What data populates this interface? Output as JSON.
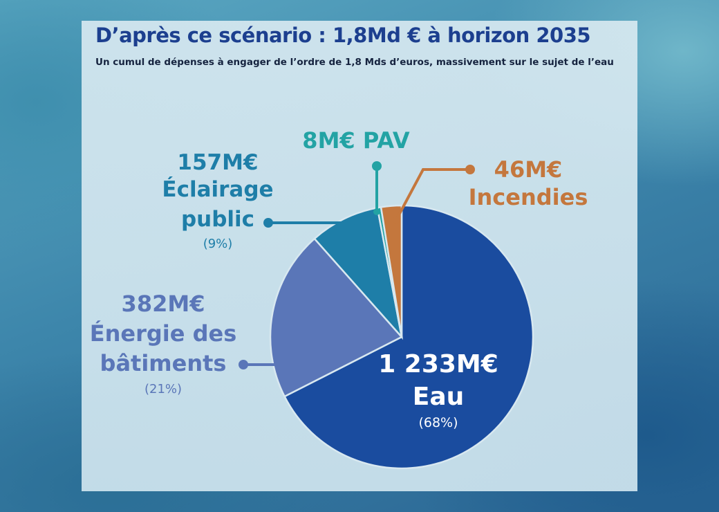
{
  "header": {
    "title": "D’après ce scénario : 1,8Md € à horizon 2035",
    "subtitle": "Un cumul de dépenses à engager de l’ordre de 1,8 Mds d’euros, massivement sur le sujet de l’eau"
  },
  "chart_data": {
    "type": "pie",
    "title": "D’après ce scénario : 1,8Md € à horizon 2035",
    "subtitle": "Un cumul de dépenses à engager de l’ordre de 1,8 Mds d’euros, massivement sur le sujet de l’eau",
    "slices": [
      {
        "value_label": "1 233M€",
        "name_lines": [
          "Eau"
        ],
        "percent": "(68%)",
        "value": 1233,
        "color": "#1a4c9f"
      },
      {
        "value_label": "382M€",
        "name_lines": [
          "Énergie des",
          "bâtiments"
        ],
        "percent": "(21%)",
        "value": 382,
        "color": "#5a76b8"
      },
      {
        "value_label": "157M€",
        "name_lines": [
          "Éclairage",
          "public"
        ],
        "percent": "(9%)",
        "value": 157,
        "color": "#1e7ea8"
      },
      {
        "value_label": "8M€ PAV",
        "name_lines": [],
        "percent": "",
        "value": 8,
        "color": "#23a3a4"
      },
      {
        "value_label": "46M€",
        "name_lines": [
          "Incendies"
        ],
        "percent": "",
        "value": 46,
        "color": "#c4773d"
      }
    ],
    "label_colors": [
      "#ffffff",
      "#5a76b8",
      "#1e7ea8",
      "#23a3a4",
      "#c4773d"
    ],
    "legend": "none"
  }
}
